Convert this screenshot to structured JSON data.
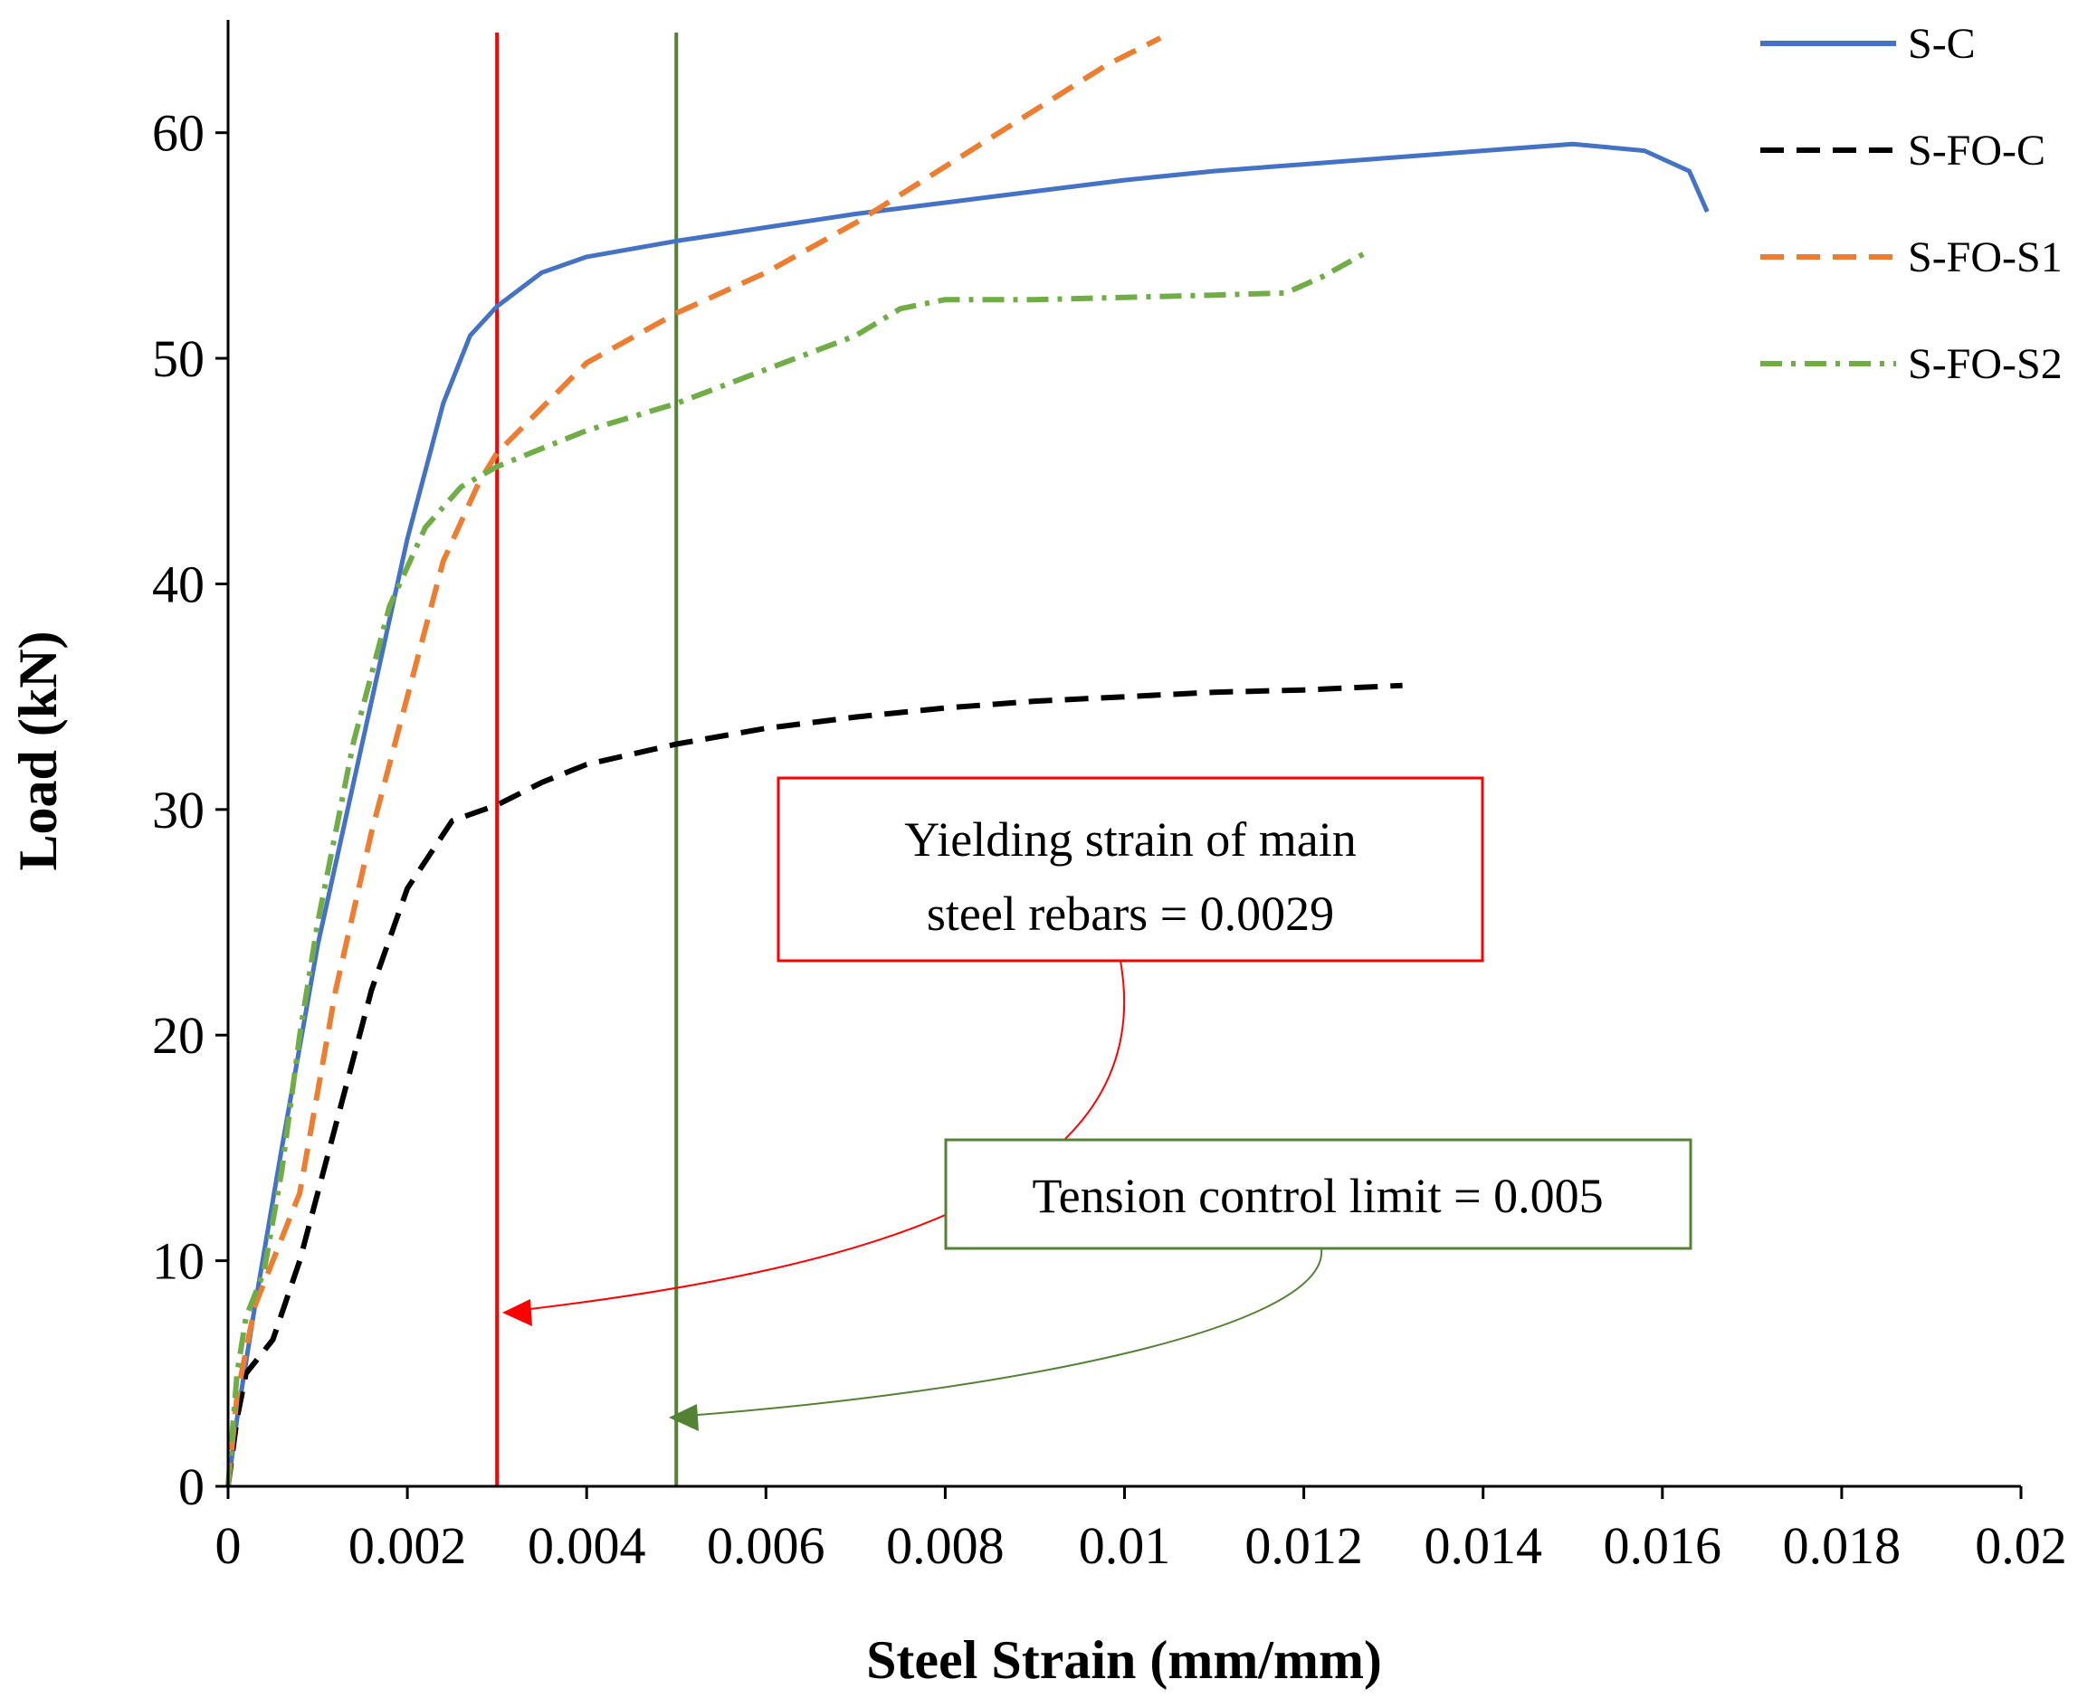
{
  "chart_data": {
    "type": "line",
    "xlabel": "Steel Strain (mm/mm)",
    "ylabel": "Load (kN)",
    "xlim": [
      0,
      0.02
    ],
    "ylim": [
      0,
      65
    ],
    "x_ticks": [
      "0",
      "0.002",
      "0.004",
      "0.006",
      "0.008",
      "0.01",
      "0.012",
      "0.014",
      "0.016",
      "0.018",
      "0.02"
    ],
    "y_ticks": [
      "0",
      "10",
      "20",
      "30",
      "40",
      "50",
      "60"
    ],
    "legend_position": "top-right",
    "series": [
      {
        "name": "S-C",
        "color": "#4472C4",
        "style": "solid",
        "points": [
          [
            0,
            0
          ],
          [
            0.0001,
            3
          ],
          [
            0.0003,
            8
          ],
          [
            0.0006,
            15
          ],
          [
            0.001,
            24
          ],
          [
            0.0015,
            33
          ],
          [
            0.002,
            42
          ],
          [
            0.0024,
            48
          ],
          [
            0.0027,
            51
          ],
          [
            0.003,
            52.3
          ],
          [
            0.0035,
            53.8
          ],
          [
            0.004,
            54.5
          ],
          [
            0.005,
            55.2
          ],
          [
            0.006,
            55.8
          ],
          [
            0.007,
            56.4
          ],
          [
            0.008,
            56.9
          ],
          [
            0.009,
            57.4
          ],
          [
            0.01,
            57.9
          ],
          [
            0.011,
            58.3
          ],
          [
            0.012,
            58.6
          ],
          [
            0.013,
            58.9
          ],
          [
            0.014,
            59.2
          ],
          [
            0.015,
            59.5
          ],
          [
            0.0158,
            59.2
          ],
          [
            0.0163,
            58.3
          ],
          [
            0.0165,
            56.5
          ]
        ]
      },
      {
        "name": "S-FO-C",
        "color": "#000000",
        "style": "dash",
        "points": [
          [
            0,
            0
          ],
          [
            0.0001,
            3
          ],
          [
            0.0002,
            5
          ],
          [
            0.0005,
            6.5
          ],
          [
            0.0008,
            10
          ],
          [
            0.0012,
            16
          ],
          [
            0.0016,
            22
          ],
          [
            0.002,
            26.5
          ],
          [
            0.0025,
            29.5
          ],
          [
            0.003,
            30.2
          ],
          [
            0.0035,
            31.2
          ],
          [
            0.004,
            32
          ],
          [
            0.005,
            32.9
          ],
          [
            0.006,
            33.6
          ],
          [
            0.007,
            34.1
          ],
          [
            0.008,
            34.5
          ],
          [
            0.009,
            34.8
          ],
          [
            0.01,
            35
          ],
          [
            0.011,
            35.2
          ],
          [
            0.012,
            35.3
          ],
          [
            0.0131,
            35.5
          ]
        ]
      },
      {
        "name": "S-FO-S1",
        "color": "#ED7D31",
        "style": "dash",
        "points": [
          [
            0,
            0
          ],
          [
            0.0001,
            4
          ],
          [
            0.0003,
            8
          ],
          [
            0.0008,
            13
          ],
          [
            0.0012,
            22
          ],
          [
            0.0016,
            29
          ],
          [
            0.002,
            35
          ],
          [
            0.0024,
            41
          ],
          [
            0.0028,
            44.5
          ],
          [
            0.003,
            45.8
          ],
          [
            0.0035,
            47.8
          ],
          [
            0.004,
            49.8
          ],
          [
            0.005,
            52
          ],
          [
            0.006,
            53.8
          ],
          [
            0.007,
            56
          ],
          [
            0.008,
            58.5
          ],
          [
            0.009,
            61
          ],
          [
            0.0098,
            63
          ],
          [
            0.0104,
            64.2
          ]
        ]
      },
      {
        "name": "S-FO-S2",
        "color": "#70AD47",
        "style": "dashdot",
        "points": [
          [
            0,
            0
          ],
          [
            0.0001,
            5
          ],
          [
            0.0002,
            7.5
          ],
          [
            0.0004,
            9.5
          ],
          [
            0.0006,
            14
          ],
          [
            0.0008,
            20
          ],
          [
            0.001,
            25
          ],
          [
            0.0014,
            33
          ],
          [
            0.0018,
            39
          ],
          [
            0.0022,
            42.5
          ],
          [
            0.0026,
            44.3
          ],
          [
            0.003,
            45.2
          ],
          [
            0.0035,
            46
          ],
          [
            0.004,
            46.8
          ],
          [
            0.005,
            48
          ],
          [
            0.006,
            49.5
          ],
          [
            0.007,
            51
          ],
          [
            0.0075,
            52.2
          ],
          [
            0.008,
            52.6
          ],
          [
            0.009,
            52.6
          ],
          [
            0.01,
            52.7
          ],
          [
            0.011,
            52.8
          ],
          [
            0.0118,
            52.9
          ],
          [
            0.0122,
            53.6
          ],
          [
            0.0127,
            54.7
          ]
        ]
      }
    ],
    "reference_lines": [
      {
        "x": 0.003,
        "color": "#FF0000"
      },
      {
        "x": 0.005,
        "color": "#548235"
      }
    ],
    "annotations": [
      {
        "lines": [
          "Yielding strain of main",
          "steel rebars = 0.0029"
        ],
        "color": "#FF0000"
      },
      {
        "lines": [
          "Tension control limit = 0.005"
        ],
        "color": "#548235"
      }
    ]
  }
}
